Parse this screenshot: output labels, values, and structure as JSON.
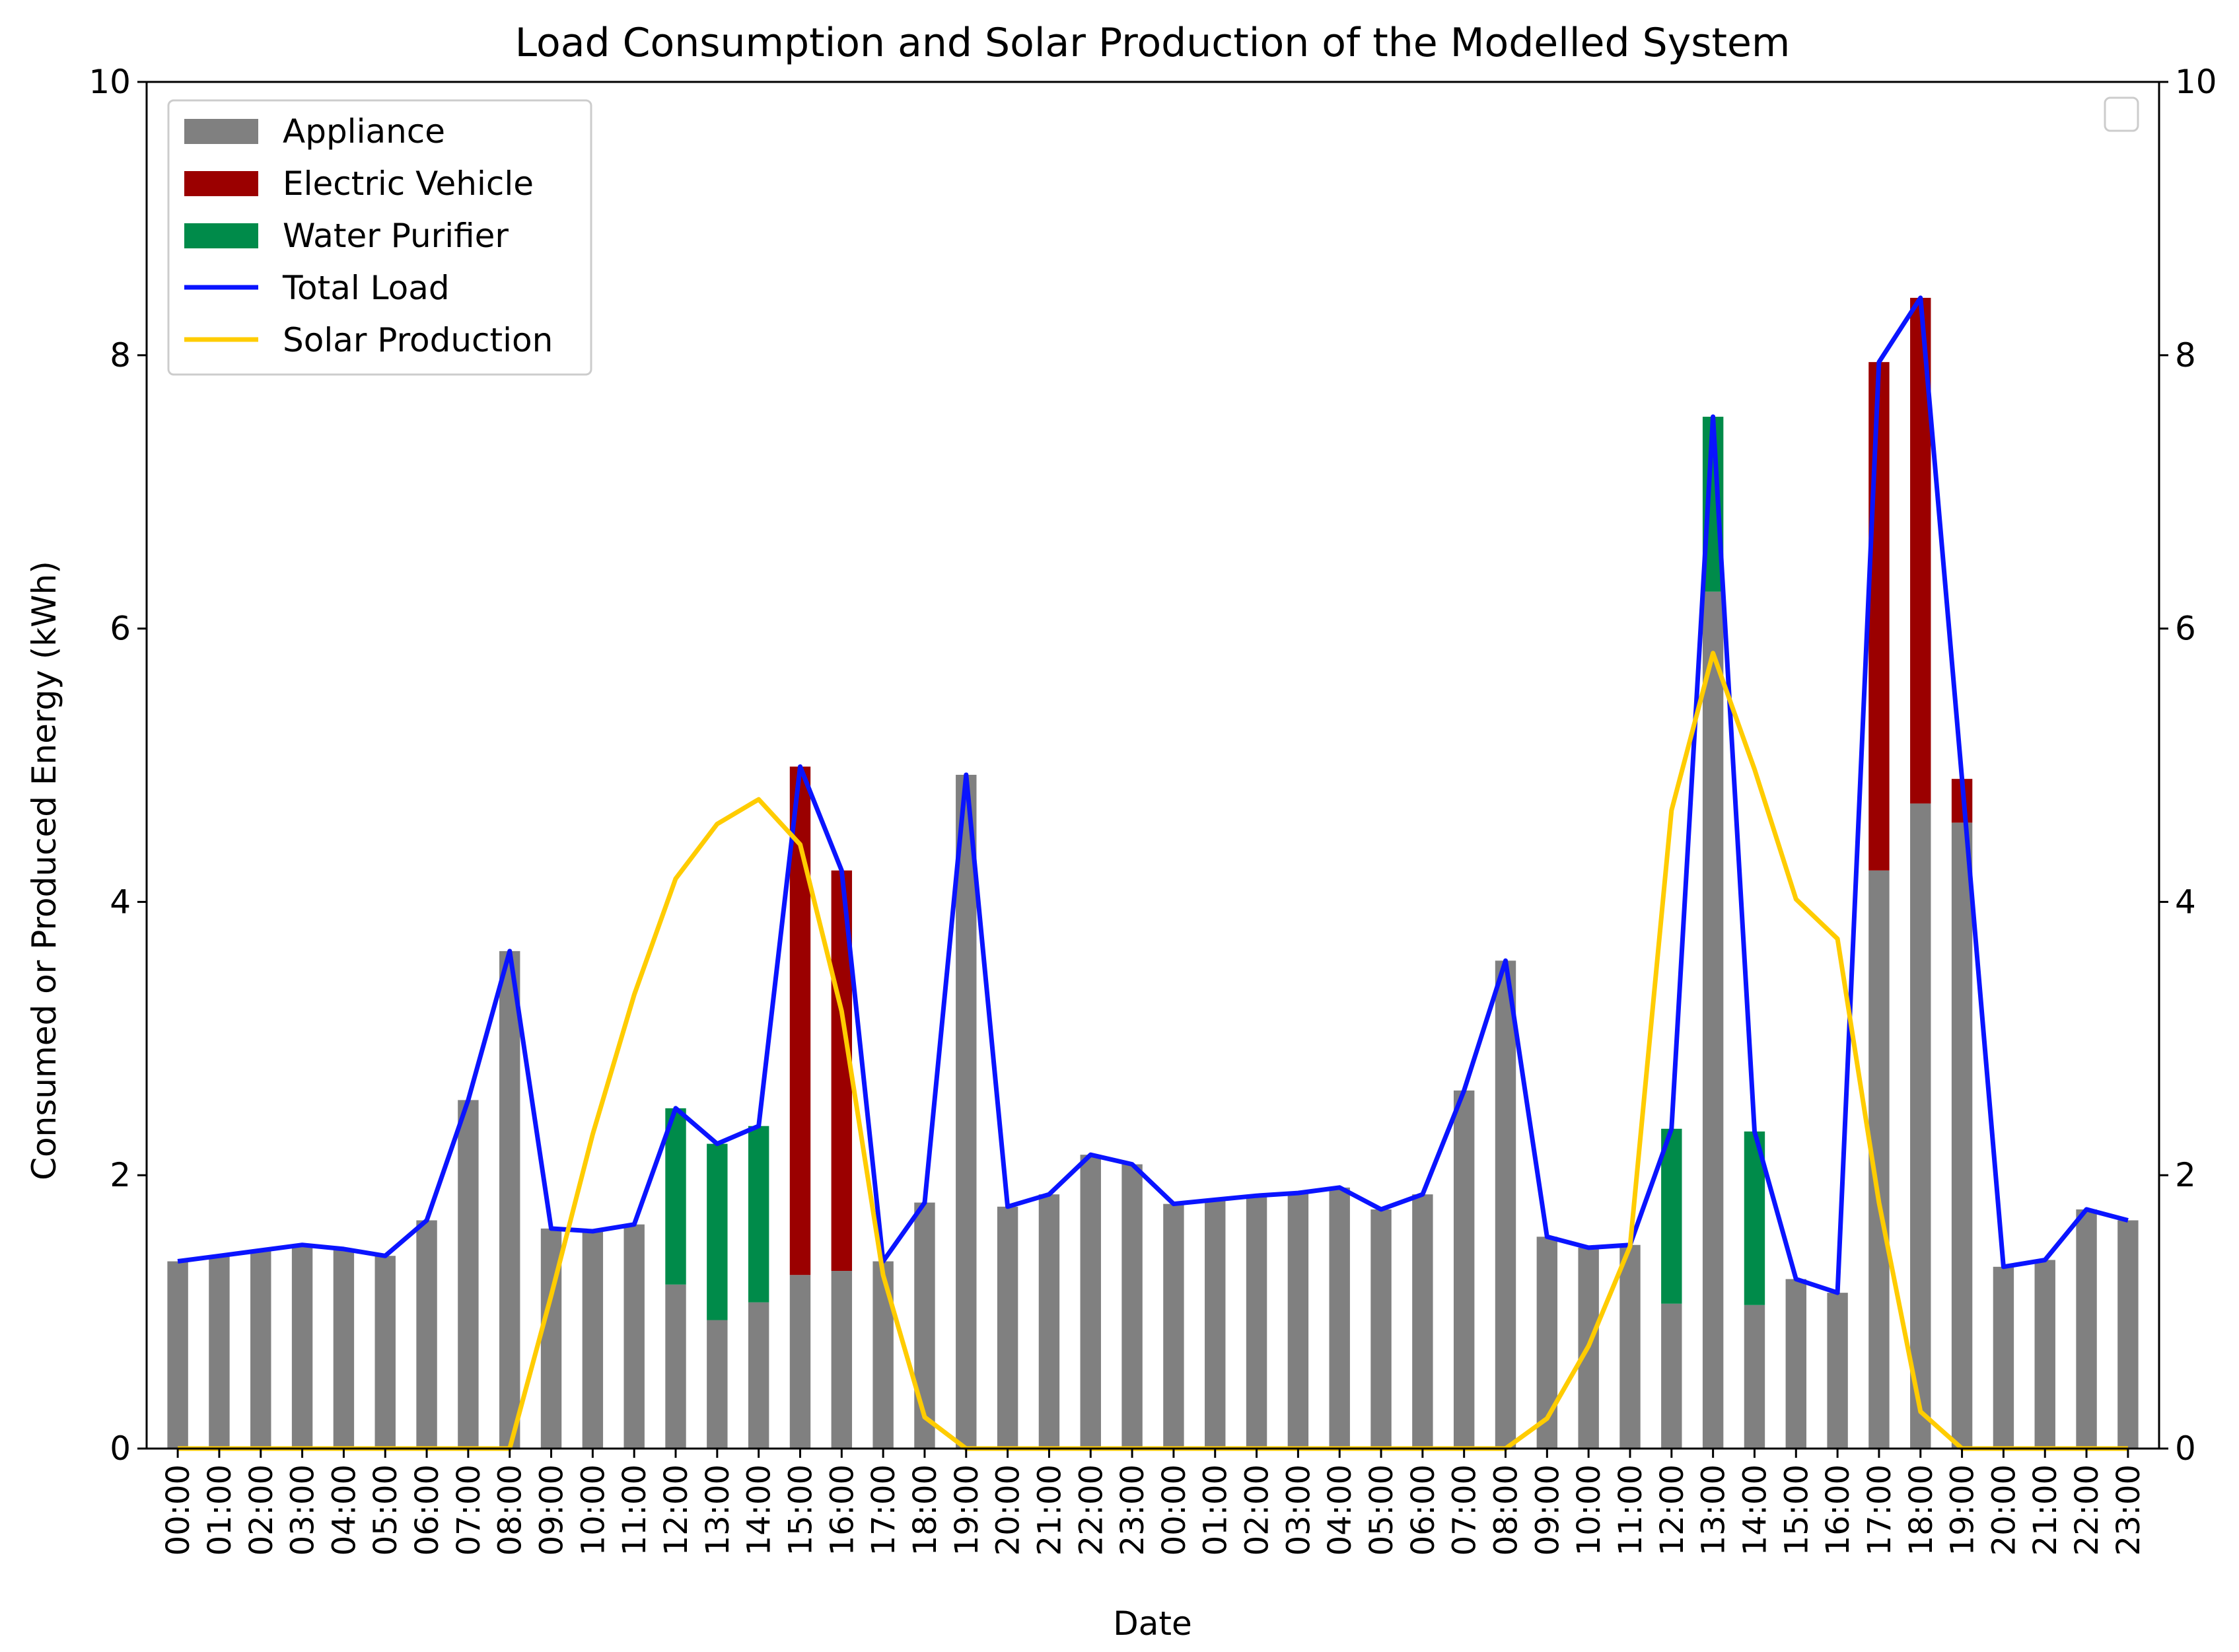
{
  "chart_data": {
    "type": "bar",
    "title": "Load Consumption and Solar Production of the Modelled System",
    "xlabel": "Date",
    "ylabel": "Consumed or Produced Energy (kWh)",
    "ylim": [
      0,
      10
    ],
    "yticks": [
      0,
      2,
      4,
      6,
      8,
      10
    ],
    "grid": false,
    "legend_position": "top-left",
    "categories": [
      "00:00",
      "01:00",
      "02:00",
      "03:00",
      "04:00",
      "05:00",
      "06:00",
      "07:00",
      "08:00",
      "09:00",
      "10:00",
      "11:00",
      "12:00",
      "13:00",
      "14:00",
      "15:00",
      "16:00",
      "17:00",
      "18:00",
      "19:00",
      "20:00",
      "21:00",
      "22:00",
      "23:00",
      "00:00",
      "01:00",
      "02:00",
      "03:00",
      "04:00",
      "05:00",
      "06:00",
      "07:00",
      "08:00",
      "09:00",
      "10:00",
      "11:00",
      "12:00",
      "13:00",
      "14:00",
      "15:00",
      "16:00",
      "17:00",
      "18:00",
      "19:00",
      "20:00",
      "21:00",
      "22:00",
      "23:00"
    ],
    "stacked_series": [
      {
        "name": "Appliance",
        "color": "#808080",
        "values": [
          1.37,
          1.41,
          1.45,
          1.49,
          1.46,
          1.41,
          1.67,
          2.55,
          3.64,
          1.61,
          1.59,
          1.64,
          1.2,
          0.94,
          1.07,
          1.27,
          1.3,
          1.37,
          1.8,
          4.93,
          1.77,
          1.86,
          2.15,
          2.08,
          1.79,
          1.82,
          1.85,
          1.87,
          1.91,
          1.75,
          1.86,
          2.62,
          3.57,
          1.55,
          1.47,
          1.49,
          1.06,
          6.27,
          1.05,
          1.24,
          1.14,
          4.23,
          4.72,
          4.58,
          1.33,
          1.38,
          1.75,
          1.67
        ]
      },
      {
        "name": "Electric Vehicle",
        "color": "#9b0000",
        "values": [
          0,
          0,
          0,
          0,
          0,
          0,
          0,
          0,
          0,
          0,
          0,
          0,
          0,
          0,
          0,
          3.72,
          2.93,
          0,
          0,
          0,
          0,
          0,
          0,
          0,
          0,
          0,
          0,
          0,
          0,
          0,
          0,
          0,
          0,
          0,
          0,
          0,
          0,
          0,
          0,
          0,
          0,
          3.72,
          3.7,
          0.32,
          0,
          0,
          0,
          0
        ]
      },
      {
        "name": "Water Purifier",
        "color": "#008b4a",
        "values": [
          0,
          0,
          0,
          0,
          0,
          0,
          0,
          0,
          0,
          0,
          0,
          0,
          1.29,
          1.29,
          1.29,
          0,
          0,
          0,
          0,
          0,
          0,
          0,
          0,
          0,
          0,
          0,
          0,
          0,
          0,
          0,
          0,
          0,
          0,
          0,
          0,
          0,
          1.28,
          1.28,
          1.27,
          0,
          0,
          0,
          0,
          0,
          0,
          0,
          0,
          0
        ]
      }
    ],
    "line_series": [
      {
        "name": "Total Load",
        "color": "#0a14ff",
        "values": [
          1.37,
          1.41,
          1.45,
          1.49,
          1.46,
          1.41,
          1.67,
          2.55,
          3.64,
          1.61,
          1.59,
          1.64,
          2.49,
          2.23,
          2.36,
          4.99,
          4.23,
          1.37,
          1.8,
          4.93,
          1.77,
          1.86,
          2.15,
          2.08,
          1.79,
          1.82,
          1.85,
          1.87,
          1.91,
          1.75,
          1.86,
          2.62,
          3.57,
          1.55,
          1.47,
          1.49,
          2.34,
          7.55,
          2.32,
          1.24,
          1.14,
          7.95,
          8.42,
          4.9,
          1.33,
          1.38,
          1.75,
          1.67
        ]
      },
      {
        "name": "Solar Production",
        "color": "#ffcc00",
        "values": [
          0,
          0,
          0,
          0,
          0,
          0,
          0,
          0,
          0,
          1.12,
          2.3,
          3.32,
          4.17,
          4.57,
          4.75,
          4.42,
          3.2,
          1.27,
          0.23,
          0,
          0,
          0,
          0,
          0,
          0,
          0,
          0,
          0,
          0,
          0,
          0,
          0,
          0,
          0.22,
          0.75,
          1.48,
          4.67,
          5.82,
          4.97,
          4.02,
          3.73,
          1.8,
          0.27,
          0,
          0,
          0,
          0,
          0
        ]
      }
    ],
    "legend": [
      {
        "label": "Appliance",
        "color": "#808080",
        "kind": "patch"
      },
      {
        "label": "Electric Vehicle",
        "color": "#9b0000",
        "kind": "patch"
      },
      {
        "label": "Water Purifier",
        "color": "#008b4a",
        "kind": "patch"
      },
      {
        "label": "Total Load",
        "color": "#0a14ff",
        "kind": "line"
      },
      {
        "label": "Solar Production",
        "color": "#ffcc00",
        "kind": "line"
      }
    ]
  }
}
